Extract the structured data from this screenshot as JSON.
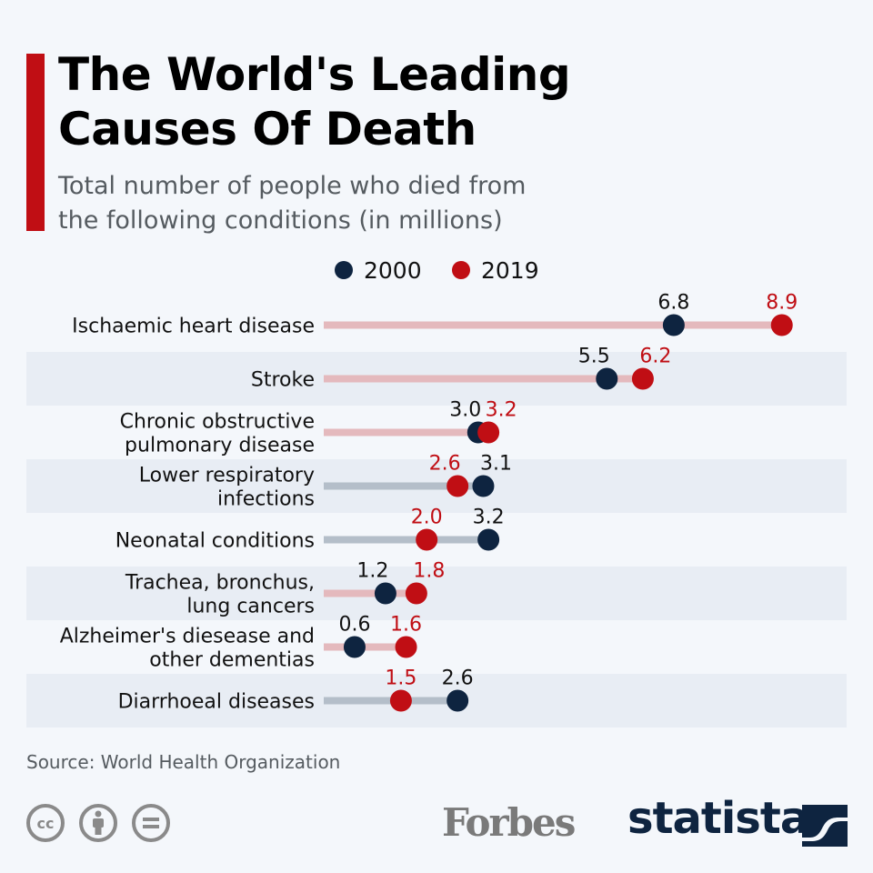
{
  "header": {
    "title": "The World's Leading\nCauses Of Death",
    "subtitle": "Total number of people who died from\nthe following conditions (in millions)"
  },
  "colors": {
    "accent": "#c00e14",
    "series_2000": "#0e2440",
    "series_2019": "#c00e14",
    "bar_increase": "#e4b9bd",
    "bar_decrease": "#b4bec9",
    "band": "#e8edf4"
  },
  "chart_data": {
    "type": "dumbbell",
    "title": "The World's Leading Causes Of Death",
    "subtitle": "Total number of people who died from the following conditions (in millions)",
    "unit": "millions",
    "legend": [
      "2000",
      "2019"
    ],
    "legend_position": "top",
    "xlim": [
      0,
      9.2
    ],
    "categories": [
      "Ischaemic heart disease",
      "Stroke",
      "Chronic obstructive\npulmonary disease",
      "Lower respiratory\ninfections",
      "Neonatal conditions",
      "Trachea, bronchus,\nlung cancers",
      "Alzheimer's diesease and\nother dementias",
      "Diarrhoeal diseases"
    ],
    "series": [
      {
        "name": "2000",
        "values": [
          6.8,
          5.5,
          3.0,
          3.1,
          3.2,
          1.2,
          0.6,
          2.6
        ]
      },
      {
        "name": "2019",
        "values": [
          8.9,
          6.2,
          3.2,
          2.6,
          2.0,
          1.8,
          1.6,
          1.5
        ]
      }
    ],
    "labels_2000": [
      "6.8",
      "5.5",
      "3.0",
      "3.1",
      "3.2",
      "1.2",
      "0.6",
      "2.6"
    ],
    "labels_2019": [
      "8.9",
      "6.2",
      "3.2",
      "2.6",
      "2.0",
      "1.8",
      "1.6",
      "1.5"
    ]
  },
  "footer": {
    "source": "Source: World Health Organization",
    "license_icons": [
      "cc-icon",
      "attribution-icon",
      "no-derivatives-icon"
    ],
    "cc_text": "cc",
    "forbes": "Forbes",
    "statista": "statista"
  }
}
